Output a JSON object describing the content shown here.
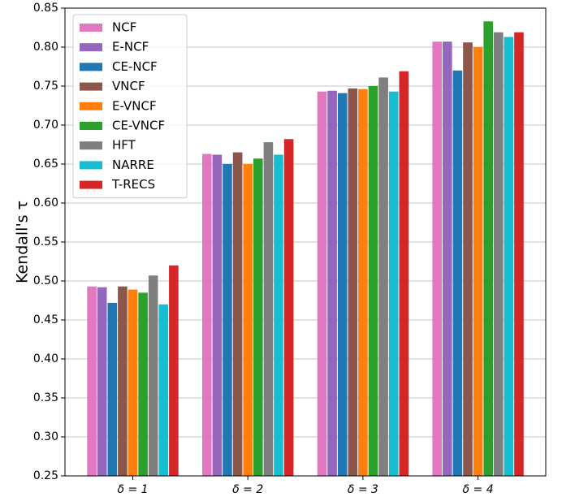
{
  "chart_data": {
    "type": "bar",
    "ylabel": "Kendall's τ",
    "categories": [
      "δ = 1",
      "δ = 2",
      "δ = 3",
      "δ = 4"
    ],
    "series": [
      {
        "name": "NCF",
        "color": "#e377c2",
        "values": [
          0.493,
          0.663,
          0.743,
          0.807
        ]
      },
      {
        "name": "E-NCF",
        "color": "#9467bd",
        "values": [
          0.492,
          0.662,
          0.744,
          0.807
        ]
      },
      {
        "name": "CE-NCF",
        "color": "#1f77b4",
        "values": [
          0.472,
          0.65,
          0.741,
          0.77
        ]
      },
      {
        "name": "VNCF",
        "color": "#8c564b",
        "values": [
          0.493,
          0.665,
          0.747,
          0.806
        ]
      },
      {
        "name": "E-VNCF",
        "color": "#ff7f0e",
        "values": [
          0.489,
          0.65,
          0.746,
          0.8
        ]
      },
      {
        "name": "CE-VNCF",
        "color": "#2ca02c",
        "values": [
          0.485,
          0.657,
          0.75,
          0.833
        ]
      },
      {
        "name": "HFT",
        "color": "#7f7f7f",
        "values": [
          0.507,
          0.678,
          0.761,
          0.819
        ]
      },
      {
        "name": "NARRE",
        "color": "#17becf",
        "values": [
          0.47,
          0.662,
          0.743,
          0.813
        ]
      },
      {
        "name": "T-RECS",
        "color": "#d62728",
        "values": [
          0.52,
          0.682,
          0.769,
          0.819
        ]
      }
    ],
    "ylim": [
      0.25,
      0.85
    ],
    "yticks": [
      0.25,
      {
        "value": 0.3,
        "label": "0.30"
      },
      0.35,
      {
        "value": 0.4,
        "label": "0.40"
      },
      0.45,
      {
        "value": 0.5,
        "label": "0.50"
      },
      0.55,
      {
        "value": 0.6,
        "label": "0.60"
      },
      0.65,
      {
        "value": 0.7,
        "label": "0.70"
      },
      0.75,
      {
        "value": 0.8,
        "label": "0.80"
      },
      0.85
    ],
    "grid": true,
    "legend": "upper left"
  }
}
